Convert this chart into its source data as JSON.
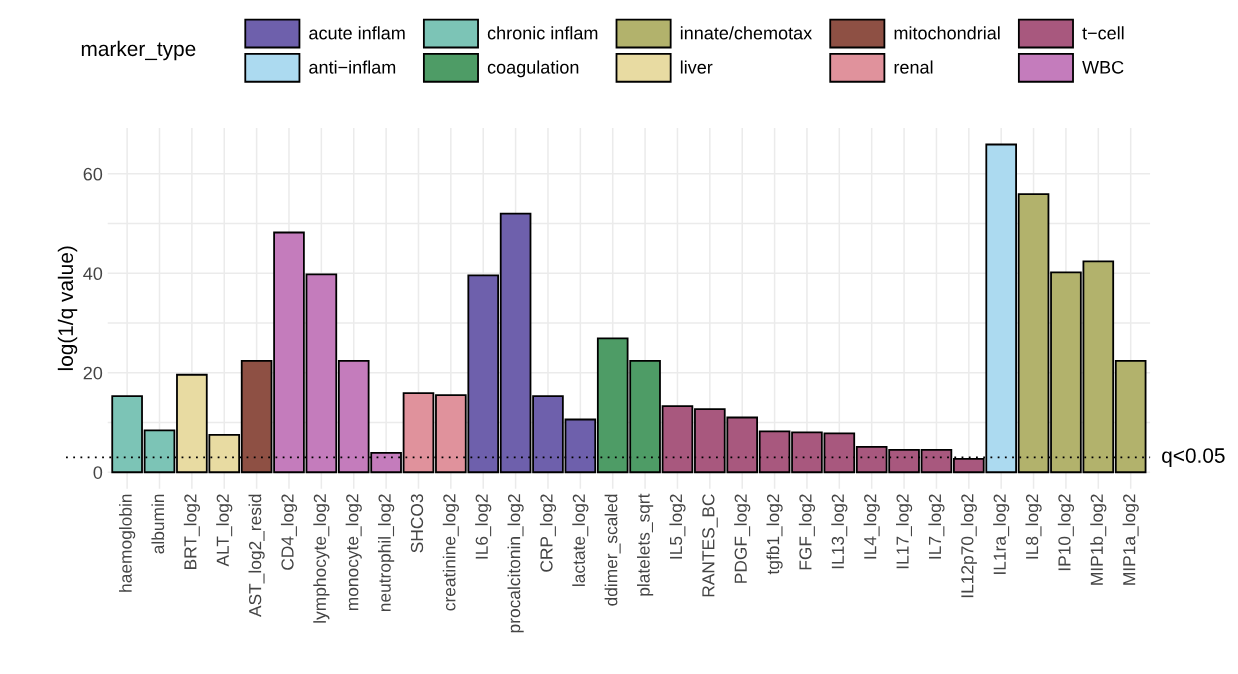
{
  "chart_data": {
    "type": "bar",
    "ylabel": "log(1/q value)",
    "legend_title": "marker_type",
    "legend": "top",
    "categories": [
      "haemoglobin",
      "albumin",
      "BRT_log2",
      "ALT_log2",
      "AST_log2_resid",
      "CD4_log2",
      "lymphocyte_log2",
      "monocyte_log2",
      "neutrophil_log2",
      "SHCO3",
      "creatinine_log2",
      "IL6_log2",
      "procalcitonin_log2",
      "CRP_log2",
      "lactate_log2",
      "ddimer_scaled",
      "platelets_sqrt",
      "IL5_log2",
      "RANTES_BC",
      "PDGF_log2",
      "tgfb1_log2",
      "FGF_log2",
      "IL13_log2",
      "IL4_log2",
      "IL17_log2",
      "IL7_log2",
      "IL12p70_log2",
      "IL1ra_log2",
      "IL8_log2",
      "IP10_log2",
      "MIP1b_log2",
      "MIP1a_log2"
    ],
    "series": [
      {
        "name": "acute inflam",
        "color": "#6e60ac",
        "values": [
          null,
          null,
          null,
          null,
          null,
          null,
          null,
          null,
          null,
          null,
          null,
          39.6,
          52,
          15.3,
          10.6,
          null,
          null,
          null,
          null,
          null,
          null,
          null,
          null,
          null,
          null,
          null,
          null,
          null,
          null,
          null,
          null,
          null
        ]
      },
      {
        "name": "anti−inflam",
        "color": "#acdaf0",
        "values": [
          null,
          null,
          null,
          null,
          null,
          null,
          null,
          null,
          null,
          null,
          null,
          null,
          null,
          null,
          null,
          null,
          null,
          null,
          null,
          null,
          null,
          null,
          null,
          null,
          null,
          null,
          null,
          65.9,
          null,
          null,
          null,
          null
        ]
      },
      {
        "name": "chronic inflam",
        "color": "#7cc4b6",
        "values": [
          15.3,
          8.4,
          null,
          null,
          null,
          null,
          null,
          null,
          null,
          null,
          null,
          null,
          null,
          null,
          null,
          null,
          null,
          null,
          null,
          null,
          null,
          null,
          null,
          null,
          null,
          null,
          null,
          null,
          null,
          null,
          null,
          null
        ]
      },
      {
        "name": "coagulation",
        "color": "#4e9c66",
        "values": [
          null,
          null,
          null,
          null,
          null,
          null,
          null,
          null,
          null,
          null,
          null,
          null,
          null,
          null,
          null,
          26.9,
          22.4,
          null,
          null,
          null,
          null,
          null,
          null,
          null,
          null,
          null,
          null,
          null,
          null,
          null,
          null,
          null
        ]
      },
      {
        "name": "innate/chemotax",
        "color": "#b2b26c",
        "values": [
          null,
          null,
          null,
          null,
          null,
          null,
          null,
          null,
          null,
          null,
          null,
          null,
          null,
          null,
          null,
          null,
          null,
          null,
          null,
          null,
          null,
          null,
          null,
          null,
          null,
          null,
          null,
          null,
          55.9,
          40.2,
          42.4,
          22.4
        ]
      },
      {
        "name": "liver",
        "color": "#e8dba2",
        "values": [
          null,
          null,
          19.6,
          7.5,
          null,
          null,
          null,
          null,
          null,
          null,
          null,
          null,
          null,
          null,
          null,
          null,
          null,
          null,
          null,
          null,
          null,
          null,
          null,
          null,
          null,
          null,
          null,
          null,
          null,
          null,
          null,
          null
        ]
      },
      {
        "name": "mitochondrial",
        "color": "#8e5044",
        "values": [
          null,
          null,
          null,
          null,
          22.4,
          null,
          null,
          null,
          null,
          null,
          null,
          null,
          null,
          null,
          null,
          null,
          null,
          null,
          null,
          null,
          null,
          null,
          null,
          null,
          null,
          null,
          null,
          null,
          null,
          null,
          null,
          null
        ]
      },
      {
        "name": "renal",
        "color": "#e0929c",
        "values": [
          null,
          null,
          null,
          null,
          null,
          null,
          null,
          null,
          null,
          15.9,
          15.5,
          null,
          null,
          null,
          null,
          null,
          null,
          null,
          null,
          null,
          null,
          null,
          null,
          null,
          null,
          null,
          null,
          null,
          null,
          null,
          null,
          null
        ]
      },
      {
        "name": "t−cell",
        "color": "#a8587e",
        "values": [
          null,
          null,
          null,
          null,
          null,
          null,
          null,
          null,
          null,
          null,
          null,
          null,
          null,
          null,
          null,
          null,
          null,
          13.3,
          12.7,
          11,
          8.2,
          8,
          7.8,
          5.1,
          4.5,
          4.5,
          2.7,
          null,
          null,
          null,
          null,
          null
        ]
      },
      {
        "name": "WBC",
        "color": "#c47cbc",
        "values": [
          null,
          null,
          null,
          null,
          null,
          48.2,
          39.8,
          22.4,
          3.9,
          null,
          null,
          null,
          null,
          null,
          null,
          null,
          null,
          null,
          null,
          null,
          null,
          null,
          null,
          null,
          null,
          null,
          null,
          null,
          null,
          null,
          null,
          null
        ]
      }
    ],
    "ylim": [
      -3.3,
      69.2
    ],
    "yticks": [
      0,
      {
        "value": 10,
        "label": null
      },
      20,
      {
        "value": 30,
        "label": null
      },
      40,
      {
        "value": 50,
        "label": null
      },
      60
    ],
    "grid": true,
    "ref_lines": [
      {
        "axis": "y",
        "value": 3,
        "label": "q<0.05",
        "color": "#000000",
        "line_style": "dotted"
      }
    ]
  }
}
